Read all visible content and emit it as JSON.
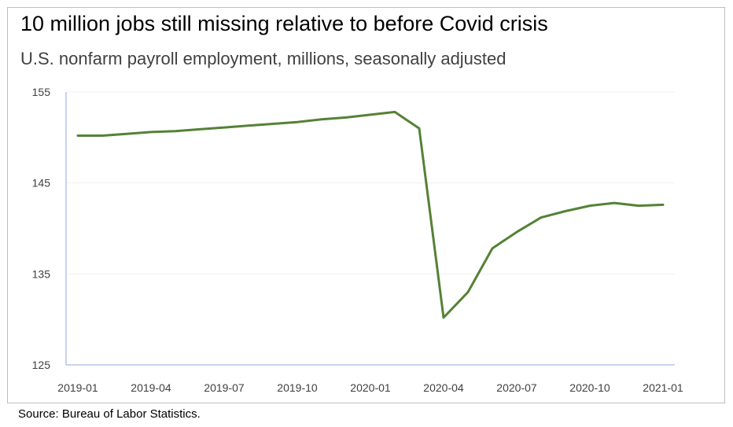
{
  "chart_data": {
    "type": "line",
    "title": "10 million jobs still missing relative to before Covid crisis",
    "subtitle": "U.S. nonfarm payroll employment, millions, seasonally adjusted",
    "source": "Source: Bureau of Labor Statistics.",
    "xlabel": "",
    "ylabel": "",
    "x": [
      "2019-01",
      "2019-02",
      "2019-03",
      "2019-04",
      "2019-05",
      "2019-06",
      "2019-07",
      "2019-08",
      "2019-09",
      "2019-10",
      "2019-11",
      "2019-12",
      "2020-01",
      "2020-02",
      "2020-03",
      "2020-04",
      "2020-05",
      "2020-06",
      "2020-07",
      "2020-08",
      "2020-09",
      "2020-10",
      "2020-11",
      "2020-12",
      "2021-01"
    ],
    "x_tick_labels": [
      "2019-01",
      "2019-04",
      "2019-07",
      "2019-10",
      "2020-01",
      "2020-04",
      "2020-07",
      "2020-10",
      "2021-01"
    ],
    "series": [
      {
        "values": [
          150.2,
          150.2,
          150.4,
          150.6,
          150.7,
          150.9,
          151.1,
          151.3,
          151.5,
          151.7,
          152.0,
          152.2,
          152.5,
          152.8,
          151.0,
          130.2,
          133.0,
          137.8,
          139.6,
          141.2,
          141.9,
          142.5,
          142.8,
          142.5,
          142.6
        ],
        "color": "#548235"
      }
    ],
    "yticks": [
      125,
      135,
      145,
      155
    ],
    "ylim": [
      125,
      155
    ],
    "grid": true,
    "legend": "none"
  }
}
